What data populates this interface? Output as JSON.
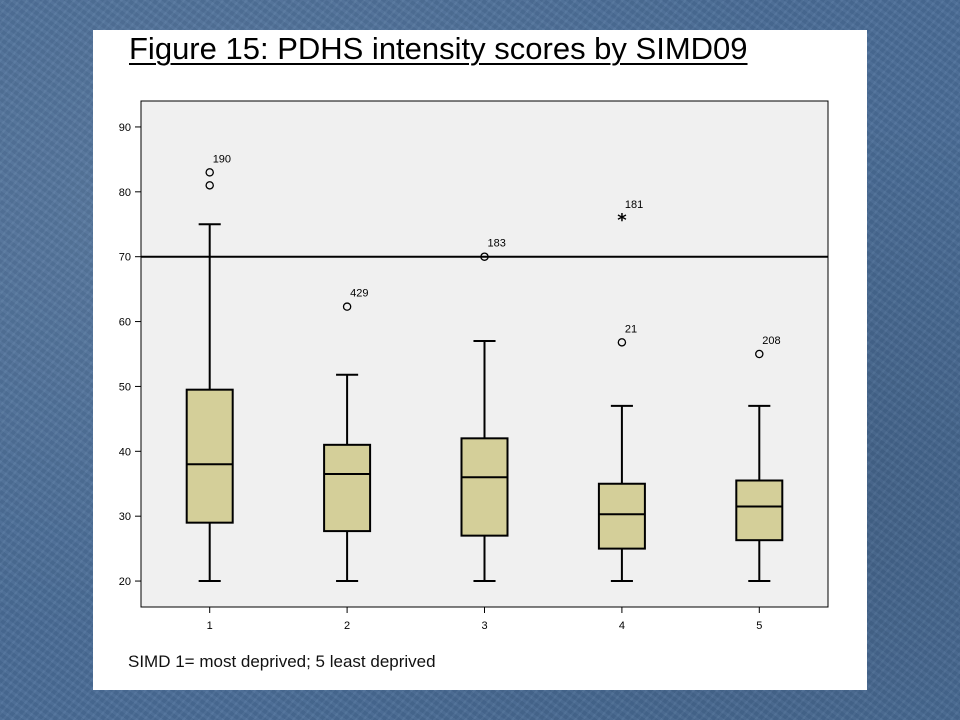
{
  "slide": {
    "title": "Figure 15: PDHS intensity scores by SIMD09",
    "caption": "SIMD 1= most deprived; 5 least deprived"
  },
  "colors": {
    "background": "#4a6d97",
    "plot_area": "#f0f0f0",
    "box_fill": "#d4cf99",
    "lines": "#000000"
  },
  "chart_data": {
    "type": "boxplot",
    "title": "Figure 15: PDHS intensity scores by SIMD09",
    "xlabel": "",
    "ylabel": "",
    "categories": [
      "1",
      "2",
      "3",
      "4",
      "5"
    ],
    "ylim": [
      16,
      94
    ],
    "yticks": [
      20,
      30,
      40,
      50,
      60,
      70,
      80,
      90
    ],
    "grid": false,
    "reference_line": 70,
    "boxes": [
      {
        "category": "1",
        "whisker_low": 20,
        "q1": 29,
        "median": 38,
        "q3": 49.5,
        "whisker_high": 75
      },
      {
        "category": "2",
        "whisker_low": 20,
        "q1": 27.7,
        "median": 36.5,
        "q3": 41,
        "whisker_high": 51.8
      },
      {
        "category": "3",
        "whisker_low": 20,
        "q1": 27,
        "median": 36,
        "q3": 42,
        "whisker_high": 57
      },
      {
        "category": "4",
        "whisker_low": 20,
        "q1": 25,
        "median": 30.3,
        "q3": 35,
        "whisker_high": 47
      },
      {
        "category": "5",
        "whisker_low": 20,
        "q1": 26.3,
        "median": 31.5,
        "q3": 35.5,
        "whisker_high": 47
      }
    ],
    "outliers": [
      {
        "category": "1",
        "value": 83,
        "marker": "circle",
        "label": "190"
      },
      {
        "category": "1",
        "value": 81,
        "marker": "circle",
        "label": ""
      },
      {
        "category": "2",
        "value": 62.3,
        "marker": "circle",
        "label": "429"
      },
      {
        "category": "3",
        "value": 70,
        "marker": "circle",
        "label": "183"
      },
      {
        "category": "4",
        "value": 76,
        "marker": "star",
        "label": "181"
      },
      {
        "category": "4",
        "value": 56.8,
        "marker": "circle",
        "label": "21"
      },
      {
        "category": "5",
        "value": 55,
        "marker": "circle",
        "label": "208"
      }
    ]
  }
}
